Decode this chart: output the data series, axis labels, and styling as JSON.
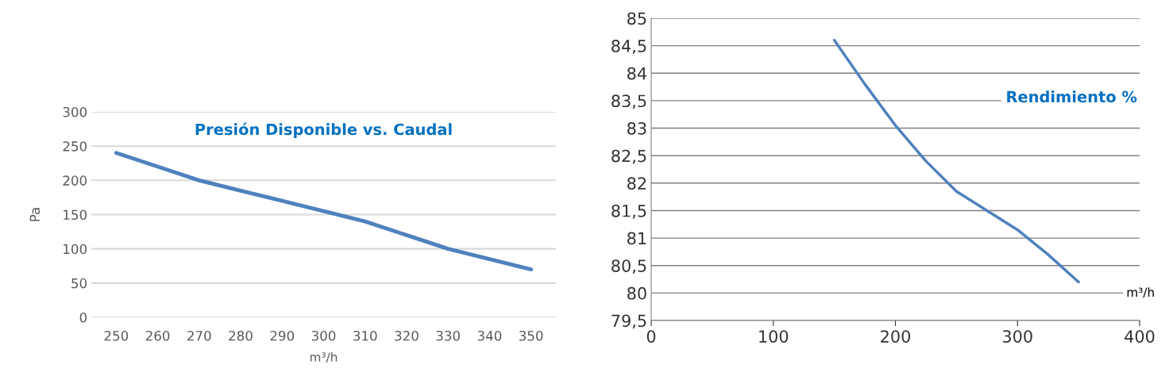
{
  "chart_data": [
    {
      "type": "line",
      "title": "Presión Disponible vs. Caudal",
      "xlabel": "m³/h",
      "ylabel": "Pa",
      "categories": [
        "250",
        "260",
        "270",
        "280",
        "290",
        "300",
        "310",
        "320",
        "330",
        "340",
        "350"
      ],
      "series": [
        {
          "color": "#4f81bd",
          "values": [
            240,
            220,
            200,
            185,
            170,
            155,
            140,
            120,
            100,
            85,
            70
          ]
        }
      ],
      "ylim": [
        0,
        300
      ],
      "yticks": [
        0,
        50,
        100,
        150,
        200,
        250,
        300
      ],
      "grid": "y"
    },
    {
      "type": "line",
      "title": "Rendimiento %",
      "xlabel": "m³/h",
      "x": [
        150,
        175,
        200,
        225,
        250,
        275,
        300,
        325,
        350
      ],
      "series": [
        {
          "color": "#4f81bd",
          "values": [
            84.6,
            83.8,
            83.05,
            82.4,
            81.85,
            81.5,
            81.15,
            80.7,
            80.2
          ]
        }
      ],
      "xlim": [
        0,
        400
      ],
      "xticks": [
        0,
        100,
        200,
        300,
        400
      ],
      "ylim": [
        79.5,
        85
      ],
      "yticks": [
        {
          "value": 79.5,
          "label": "79,5"
        },
        80,
        {
          "value": 80.5,
          "label": "80,5"
        },
        81,
        {
          "value": 81.5,
          "label": "81,5"
        },
        82,
        {
          "value": 82.5,
          "label": "82,5"
        },
        83,
        {
          "value": 83.5,
          "label": "83,5"
        },
        84,
        {
          "value": 84.5,
          "label": "84,5"
        },
        85
      ],
      "grid": "y"
    }
  ]
}
